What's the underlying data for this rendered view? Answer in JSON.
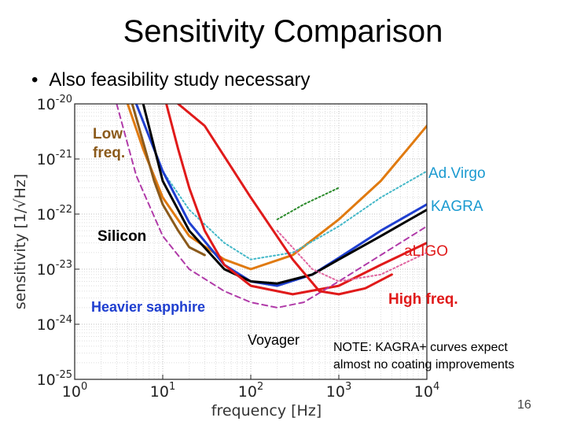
{
  "slide": {
    "title": "Sensitivity Comparison",
    "bullet": "Also feasibility study necessary",
    "page_number": "16"
  },
  "chart_data": {
    "type": "line",
    "title": "",
    "xlabel": "frequency [Hz]",
    "ylabel": "sensitivity [1/√Hz]",
    "xscale": "log",
    "yscale": "log",
    "xlim": [
      1,
      10000
    ],
    "ylim": [
      1e-25,
      1e-20
    ],
    "x_ticks": [
      "10^0",
      "10^1",
      "10^2",
      "10^3",
      "10^4"
    ],
    "y_ticks": [
      "10^-25",
      "10^-24",
      "10^-23",
      "10^-22",
      "10^-21",
      "10^-20"
    ],
    "grid": true,
    "series": [
      {
        "name": "Ad.Virgo",
        "color": "#e07a10",
        "style": "solid",
        "points": [
          [
            4,
            1e-20
          ],
          [
            6,
            1.5e-21
          ],
          [
            10,
            2e-22
          ],
          [
            20,
            4e-23
          ],
          [
            50,
            1.5e-23
          ],
          [
            100,
            1e-23
          ],
          [
            300,
            1.8e-23
          ],
          [
            1000,
            8e-23
          ],
          [
            3000,
            4e-22
          ],
          [
            6000,
            1.5e-21
          ],
          [
            10000,
            4e-21
          ]
        ]
      },
      {
        "name": "Low freq.",
        "color": "#8b5a1b",
        "style": "solid",
        "points": [
          [
            4.5,
            1e-20
          ],
          [
            6,
            2e-21
          ],
          [
            8,
            4e-22
          ],
          [
            10,
            1.5e-22
          ],
          [
            15,
            5e-23
          ],
          [
            20,
            2.5e-23
          ],
          [
            30,
            1.8e-23
          ]
        ]
      },
      {
        "name": "KAGRA",
        "color": "#44b8c8",
        "style": "dotted",
        "points": [
          [
            10,
            6e-22
          ],
          [
            20,
            1.2e-22
          ],
          [
            50,
            3e-23
          ],
          [
            100,
            1.5e-23
          ],
          [
            300,
            2e-23
          ],
          [
            1000,
            6e-23
          ],
          [
            3000,
            2e-22
          ],
          [
            10000,
            6e-22
          ]
        ]
      },
      {
        "name": "aLIGO",
        "color": "#1f3fd0",
        "style": "solid",
        "points": [
          [
            5,
            1e-20
          ],
          [
            10,
            6e-22
          ],
          [
            20,
            7e-23
          ],
          [
            50,
            1.2e-23
          ],
          [
            100,
            6e-24
          ],
          [
            200,
            5e-24
          ],
          [
            500,
            8e-24
          ],
          [
            1000,
            1.6e-23
          ],
          [
            3000,
            5e-23
          ],
          [
            10000,
            1.5e-22
          ]
        ]
      },
      {
        "name": "Silicon",
        "color": "#000000",
        "style": "solid",
        "points": [
          [
            6,
            1e-20
          ],
          [
            10,
            4e-22
          ],
          [
            20,
            5e-23
          ],
          [
            50,
            1e-23
          ],
          [
            100,
            6e-24
          ],
          [
            200,
            5.5e-24
          ],
          [
            500,
            8e-24
          ],
          [
            1000,
            1.5e-23
          ],
          [
            3000,
            4e-23
          ],
          [
            10000,
            1.2e-22
          ]
        ]
      },
      {
        "name": "Heavier sapphire",
        "color": "#e01a1a",
        "style": "solid",
        "points": [
          [
            11,
            1e-20
          ],
          [
            15,
            1.5e-21
          ],
          [
            20,
            3e-22
          ],
          [
            30,
            5e-23
          ],
          [
            50,
            1.2e-23
          ],
          [
            100,
            5e-24
          ],
          [
            300,
            3.5e-24
          ],
          [
            1000,
            5e-24
          ],
          [
            3000,
            1.2e-23
          ],
          [
            10000,
            3e-23
          ]
        ]
      },
      {
        "name": "Voyager",
        "color": "#b03aa8",
        "style": "dashed",
        "points": [
          [
            3,
            1e-20
          ],
          [
            5,
            5e-22
          ],
          [
            10,
            4e-23
          ],
          [
            20,
            1e-23
          ],
          [
            50,
            4e-24
          ],
          [
            100,
            2.5e-24
          ],
          [
            200,
            2e-24
          ],
          [
            400,
            2.5e-24
          ],
          [
            1000,
            6e-24
          ],
          [
            3000,
            1.8e-23
          ],
          [
            10000,
            6e-23
          ]
        ]
      },
      {
        "name": "High freq.",
        "color": "#e01a1a",
        "style": "solid",
        "points": [
          [
            15,
            1e-20
          ],
          [
            30,
            4e-21
          ],
          [
            100,
            2e-22
          ],
          [
            300,
            1.5e-23
          ],
          [
            600,
            4e-24
          ],
          [
            1000,
            3.5e-24
          ],
          [
            2000,
            4.5e-24
          ],
          [
            4000,
            8e-24
          ]
        ]
      },
      {
        "name": "Green dotted",
        "color": "#2a8a2a",
        "style": "dotted",
        "points": [
          [
            200,
            8e-23
          ],
          [
            400,
            1.5e-22
          ],
          [
            1000,
            3e-22
          ]
        ]
      },
      {
        "name": "Pink dotted",
        "color": "#e066a0",
        "style": "dotted",
        "points": [
          [
            200,
            5e-23
          ],
          [
            500,
            1e-23
          ],
          [
            1000,
            6e-24
          ],
          [
            3000,
            8e-24
          ],
          [
            10000,
            2e-23
          ]
        ]
      }
    ],
    "annotations": [
      {
        "text": "Low\nfreq.",
        "color": "#8b5a1b"
      },
      {
        "text": "Ad.Virgo",
        "color": "#1a9ad0"
      },
      {
        "text": "KAGRA",
        "color": "#1a9ad0"
      },
      {
        "text": "Silicon",
        "color": "#000000"
      },
      {
        "text": "aLIGO",
        "color": "#e01a1a"
      },
      {
        "text": "High freq.",
        "color": "#e01a1a"
      },
      {
        "text": "Heavier sapphire",
        "color": "#1f3fd0"
      },
      {
        "text": "Voyager",
        "color": "#000000"
      },
      {
        "text": "NOTE: KAGRA+ curves expect\nalmost no coating improvements",
        "color": "#000000"
      }
    ]
  }
}
